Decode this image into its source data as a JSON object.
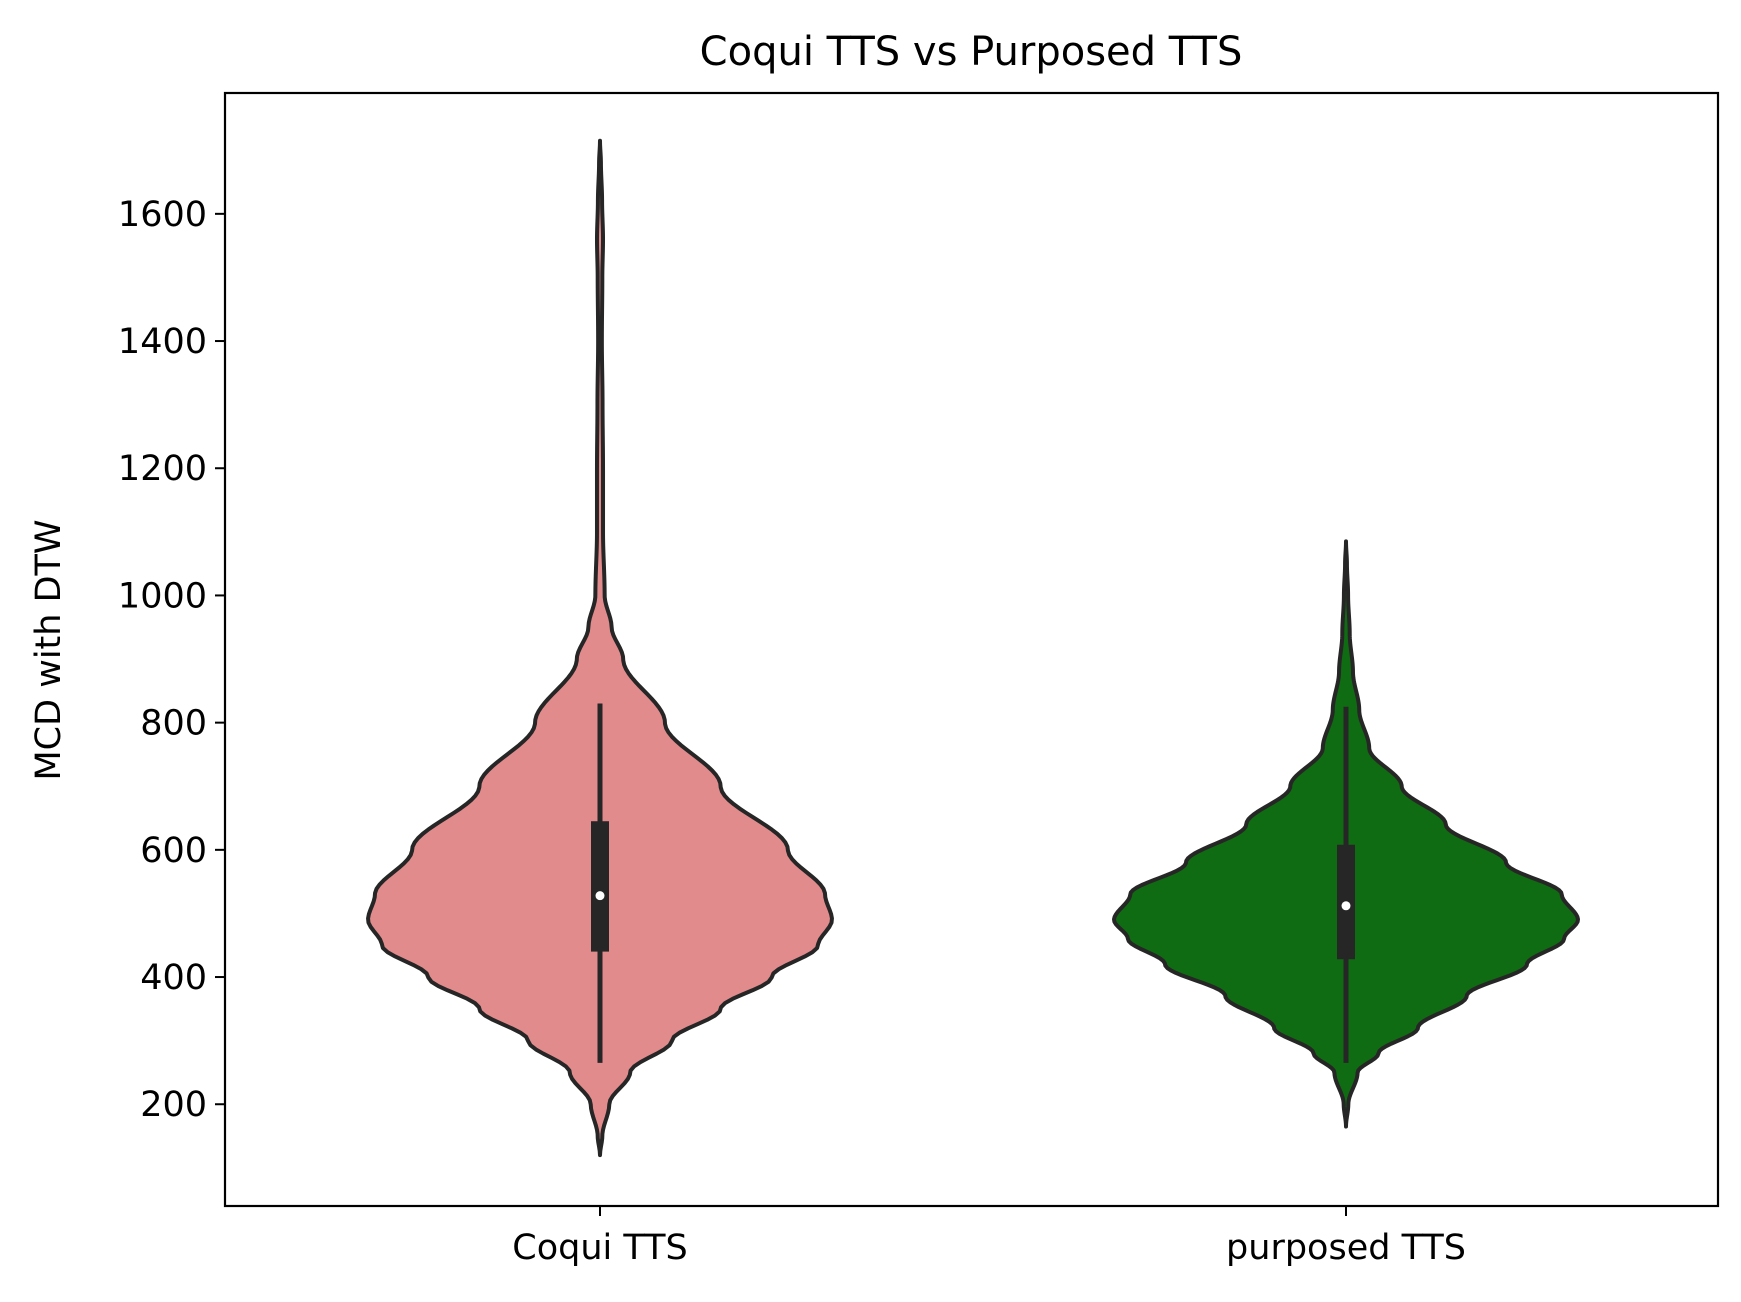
{
  "chart_data": {
    "type": "violin",
    "title": "Coqui TTS vs Purposed TTS",
    "xlabel": "",
    "ylabel": "MCD with DTW",
    "ylim": [
      40,
      1790
    ],
    "yticks": [
      200,
      400,
      600,
      800,
      1000,
      1200,
      1400,
      1600
    ],
    "grid": false,
    "legend": "none",
    "categories": [
      "Coqui TTS",
      "purposed TTS"
    ],
    "series": [
      {
        "category": "Coqui TTS",
        "color": "#e28b8d",
        "min": 120,
        "max": 1715,
        "whisker_low": 265,
        "whisker_high": 830,
        "q1": 440,
        "median": 528,
        "q3": 645,
        "density": [
          [
            120,
            0.0
          ],
          [
            150,
            0.01
          ],
          [
            200,
            0.04
          ],
          [
            250,
            0.13
          ],
          [
            300,
            0.31
          ],
          [
            350,
            0.52
          ],
          [
            400,
            0.74
          ],
          [
            450,
            0.94
          ],
          [
            490,
            1.0
          ],
          [
            530,
            0.97
          ],
          [
            600,
            0.81
          ],
          [
            700,
            0.52
          ],
          [
            800,
            0.28
          ],
          [
            900,
            0.1
          ],
          [
            950,
            0.05
          ],
          [
            1000,
            0.02
          ],
          [
            1100,
            0.013
          ],
          [
            1200,
            0.013
          ],
          [
            1300,
            0.011
          ],
          [
            1400,
            0.008
          ],
          [
            1500,
            0.01
          ],
          [
            1560,
            0.013
          ],
          [
            1620,
            0.009
          ],
          [
            1680,
            0.004
          ],
          [
            1715,
            0.0
          ]
        ]
      },
      {
        "category": "purposed TTS",
        "color": "#106c12",
        "min": 165,
        "max": 1085,
        "whisker_low": 265,
        "whisker_high": 825,
        "q1": 428,
        "median": 512,
        "q3": 608,
        "density": [
          [
            165,
            0.0
          ],
          [
            200,
            0.01
          ],
          [
            250,
            0.05
          ],
          [
            280,
            0.14
          ],
          [
            320,
            0.31
          ],
          [
            370,
            0.52
          ],
          [
            420,
            0.78
          ],
          [
            460,
            0.94
          ],
          [
            490,
            1.0
          ],
          [
            530,
            0.93
          ],
          [
            580,
            0.69
          ],
          [
            640,
            0.43
          ],
          [
            700,
            0.24
          ],
          [
            760,
            0.1
          ],
          [
            820,
            0.057
          ],
          [
            880,
            0.03
          ],
          [
            940,
            0.016
          ],
          [
            1000,
            0.009
          ],
          [
            1050,
            0.004
          ],
          [
            1085,
            0.0
          ]
        ]
      }
    ]
  }
}
